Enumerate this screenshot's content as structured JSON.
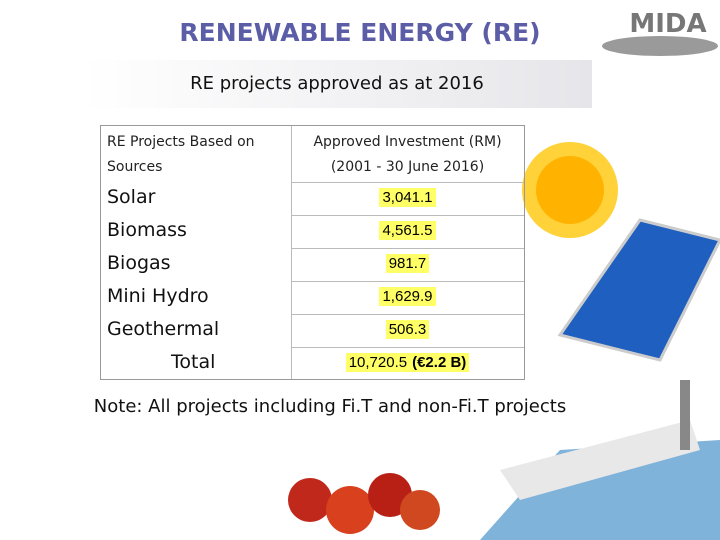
{
  "header": {
    "title": "RENEWABLE ENERGY (RE)",
    "logo": "MIDA"
  },
  "banner": "RE projects approved as at 2016",
  "table": {
    "columns": [
      "RE Projects Based on Sources",
      "Approved Investment (RM) (2001 - 30 June 2016)"
    ],
    "rows": [
      [
        "Solar",
        "3,041.1"
      ],
      [
        "Biomass",
        "4,561.5"
      ],
      [
        "Biogas",
        "981.7"
      ],
      [
        "Mini Hydro",
        "1,629.9"
      ],
      [
        "Geothermal",
        "506.3"
      ]
    ],
    "total": {
      "label": "Total",
      "value": "10,720.5",
      "extra": "(€2.2 B)"
    }
  },
  "note": "Note: All projects including Fi.T and non-Fi.T projects"
}
